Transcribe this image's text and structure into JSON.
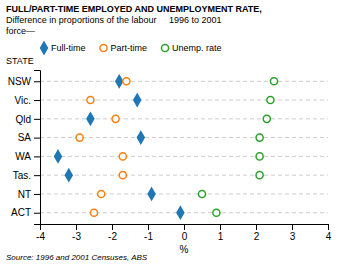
{
  "chart_data": {
    "type": "dot",
    "title": [
      "FULL/PART-TIME EMPLOYED AND UNEMPLOYMENT RATE,",
      "Difference in proportions of the labour     1996 to 2001",
      "force—"
    ],
    "xlabel": "%",
    "ylabel": "STATE",
    "annotations": [
      "Source: 1996 and 2001 Censuses, ABS"
    ],
    "categories": [
      "NSW",
      "Vic.",
      "Qld",
      "SA",
      "WA",
      "Tas.",
      "NT",
      "ACT"
    ],
    "series": [
      {
        "name": "Full-time",
        "marker": "diamond",
        "values": [
          -1.8,
          -1.3,
          -2.6,
          -1.2,
          -3.5,
          -3.2,
          -0.9,
          -0.1
        ]
      },
      {
        "name": "Part-time",
        "marker": "open-circle",
        "values": [
          -1.6,
          -2.6,
          -1.9,
          -2.9,
          -1.7,
          -1.7,
          -2.3,
          -2.5
        ]
      },
      {
        "name": "Unemp. rate",
        "marker": "open-circle",
        "values": [
          2.5,
          2.4,
          2.3,
          2.1,
          2.1,
          2.1,
          0.5,
          0.9
        ]
      }
    ],
    "xlim": [
      -4,
      4
    ],
    "xticks": [
      -4,
      -3,
      -2,
      -1,
      0,
      1,
      2,
      3,
      4
    ],
    "grid": true,
    "legend": "top"
  }
}
